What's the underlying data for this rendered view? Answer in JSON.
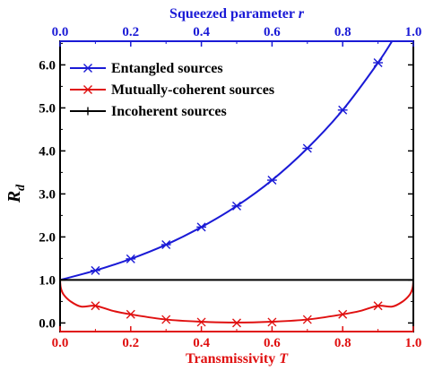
{
  "chart_data": {
    "type": "line",
    "top_axis": {
      "label_prefix": "Squeezed parameter ",
      "label_var": "r",
      "range": [
        0.0,
        1.0
      ],
      "ticks": [
        0.0,
        0.2,
        0.4,
        0.6,
        0.8,
        1.0
      ],
      "tick_labels": [
        "0.0",
        "0.2",
        "0.4",
        "0.6",
        "0.8",
        "1.0"
      ],
      "color": "#1a1ad6"
    },
    "bottom_axis": {
      "label_prefix": "Transmissivity ",
      "label_var": "T",
      "range": [
        0.0,
        1.0
      ],
      "ticks": [
        0.0,
        0.2,
        0.4,
        0.6,
        0.8,
        1.0
      ],
      "tick_labels": [
        "0.0",
        "0.2",
        "0.4",
        "0.6",
        "0.8",
        "1.0"
      ],
      "color": "#e01010"
    },
    "y_axis": {
      "label_main": "R",
      "label_sub": "d",
      "range": [
        -0.2,
        6.55
      ],
      "ticks": [
        0.0,
        1.0,
        2.0,
        3.0,
        4.0,
        5.0,
        6.0
      ],
      "tick_labels": [
        "0.0",
        "1.0",
        "2.0",
        "3.0",
        "4.0",
        "5.0",
        "6.0"
      ]
    },
    "grid": false,
    "legend_position": "top-left",
    "series": [
      {
        "name": "Entangled sources",
        "color": "#1a1ad6",
        "marker": "asterisk",
        "axis": "top",
        "line_x": [
          0.0,
          0.1,
          0.2,
          0.3,
          0.4,
          0.5,
          0.6,
          0.7,
          0.8,
          0.9,
          0.95,
          1.0
        ],
        "line_y": [
          1.0,
          1.22,
          1.49,
          1.82,
          2.23,
          2.72,
          3.32,
          4.06,
          4.95,
          6.05,
          6.69,
          7.39
        ],
        "marker_x": [
          0.1,
          0.2,
          0.3,
          0.4,
          0.5,
          0.6,
          0.7,
          0.8,
          0.9
        ],
        "marker_y": [
          1.22,
          1.49,
          1.82,
          2.23,
          2.72,
          3.32,
          4.06,
          4.95,
          6.05
        ]
      },
      {
        "name": "Mutually-coherent sources",
        "color": "#e01010",
        "marker": "x",
        "axis": "bottom",
        "line_x": [
          0.0,
          0.002,
          0.01,
          0.03,
          0.06,
          0.1,
          0.15,
          0.2,
          0.3,
          0.4,
          0.5,
          0.6,
          0.7,
          0.8,
          0.85,
          0.9,
          0.94,
          0.97,
          0.99,
          0.998,
          1.0
        ],
        "line_y": [
          1.0,
          0.82,
          0.66,
          0.5,
          0.38,
          0.4,
          0.28,
          0.2,
          0.08,
          0.03,
          0.01,
          0.03,
          0.08,
          0.2,
          0.28,
          0.4,
          0.38,
          0.5,
          0.66,
          0.82,
          1.0
        ],
        "marker_x": [
          0.1,
          0.2,
          0.3,
          0.4,
          0.5,
          0.6,
          0.7,
          0.8,
          0.9
        ],
        "marker_y": [
          0.4,
          0.2,
          0.08,
          0.02,
          0.0,
          0.02,
          0.08,
          0.2,
          0.4
        ]
      },
      {
        "name": "Incoherent sources",
        "color": "#000000",
        "marker": "plus",
        "axis": "bottom",
        "line_x": [
          0.0,
          1.0
        ],
        "line_y": [
          1.0,
          1.0
        ],
        "marker_x": [],
        "marker_y": []
      }
    ]
  }
}
